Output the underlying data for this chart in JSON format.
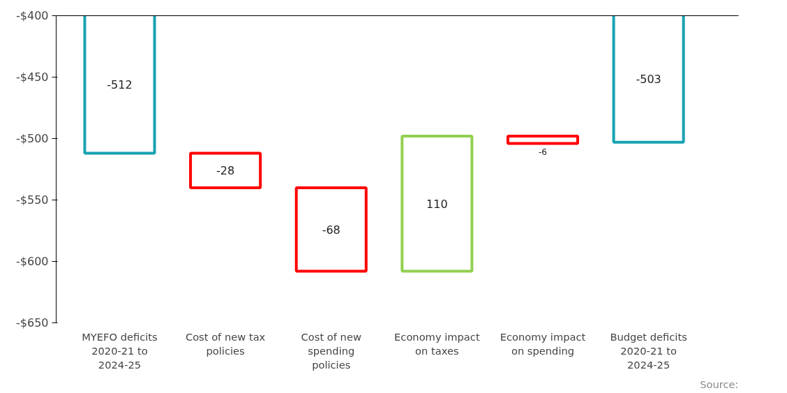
{
  "chart_data": {
    "type": "bar",
    "categories": [
      "MYEFO deficits 2020-21 to 2024-25",
      "Cost of new tax policies",
      "Cost of new spending policies",
      "Economy impact on taxes",
      "Economy impact on spending",
      "Budget deficits 2020-21 to 2024-25"
    ],
    "values": [
      -512,
      -28,
      -68,
      110,
      -6,
      -503
    ],
    "base": [
      0,
      -512,
      -540,
      -608,
      -498,
      0
    ],
    "colors": [
      "#17a2b2",
      "#ff0000",
      "#ff0000",
      "#92d050",
      "#ff0000",
      "#17a2b2"
    ],
    "ylim": [
      -650,
      -400
    ],
    "yticks": [
      {
        "value": -650,
        "label": "-$650"
      },
      {
        "value": -600,
        "label": "-$600"
      },
      {
        "value": -550,
        "label": "-$550"
      },
      {
        "value": -500,
        "label": "-$500"
      },
      {
        "value": -450,
        "label": "-$450"
      },
      {
        "value": -400,
        "label": "-$400"
      }
    ],
    "data_labels": true,
    "grid": false,
    "annotations": [
      "Source:"
    ]
  }
}
